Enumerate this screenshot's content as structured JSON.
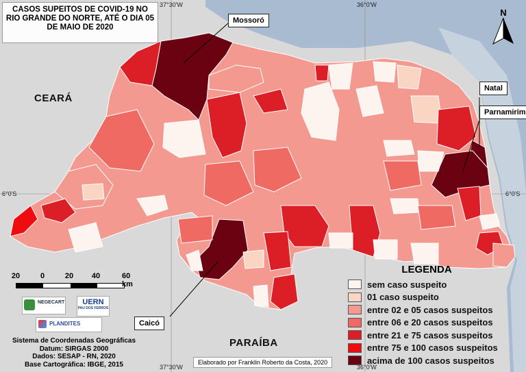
{
  "title": [
    "CASOS SUPEITOS DE COVID-19 NO",
    "RIO GRANDE DO NORTE, ATÉ O DIA 05",
    "DE MAIO DE 2020"
  ],
  "coordinates": {
    "top_left": "37°30'W",
    "top_right": "36°0'W",
    "bottom_left": "37°30'W",
    "bottom_right": "36°0'W",
    "left": "6°0'S",
    "right": "6°0'S"
  },
  "north_arrow": "N",
  "city_labels": {
    "mossoro": "Mossoró",
    "natal": "Natal",
    "parnamirim": "Parnamirim",
    "caico": "Caicó"
  },
  "region_labels": {
    "ceara": "CEARÁ",
    "paraiba": "PARAÍBA"
  },
  "scale_bar": {
    "labels": [
      "20",
      "0",
      "20",
      "40",
      "60 km"
    ]
  },
  "logos": {
    "negecart": "NEGECART",
    "uern": "UERN",
    "uern_sub": "PAU DOS FERROS",
    "plandites": "PLANDITES"
  },
  "legend": {
    "title": "LEGENDA",
    "items": [
      {
        "label": "sem caso suspeito",
        "color": "#fdf3ef"
      },
      {
        "label": "01 caso suspeito",
        "color": "#fbd5c4"
      },
      {
        "label": "entre 02 e 05 casos suspeitos",
        "color": "#f4998f"
      },
      {
        "label": "entre 06 e 20 casos suspeitos",
        "color": "#ee6a62"
      },
      {
        "label": "entre 21 e 75 casos suspeitos",
        "color": "#dc1f26"
      },
      {
        "label": "entre 75 e 100 casos suspeitos",
        "color": "#ee0c10"
      },
      {
        "label": "acima de 100 casos suspeitos",
        "color": "#6b0212"
      }
    ]
  },
  "footer": [
    "Sistema de Coordenadas Geográficas",
    "Datum: SIRGAS 2000",
    "Dados: SESAP - RN, 2020",
    "Base Cartográfica: IBGE, 2015"
  ],
  "author": "Elaborado por Franklin Roberto da Costa, 2020",
  "colors": {
    "background": "#d9d9d9",
    "ocean": "#a9bbd0",
    "border": "#ffffff"
  }
}
